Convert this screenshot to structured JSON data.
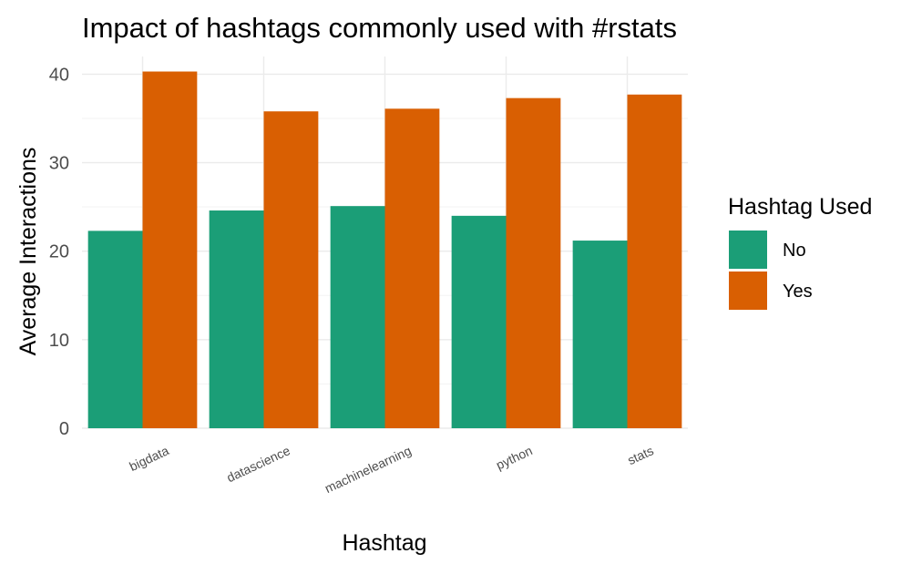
{
  "chart_data": {
    "type": "bar",
    "title": "Impact of hashtags commonly used with #rstats",
    "xlabel": "Hashtag",
    "ylabel": "Average Interactions",
    "categories": [
      "bigdata",
      "datascience",
      "machinelearning",
      "python",
      "stats"
    ],
    "series": [
      {
        "name": "No",
        "color": "#1b9e77",
        "values": [
          22.3,
          24.6,
          25.1,
          24.0,
          21.2
        ]
      },
      {
        "name": "Yes",
        "color": "#d95f02",
        "values": [
          40.3,
          35.8,
          36.1,
          37.3,
          37.7
        ]
      }
    ],
    "ylim": [
      0,
      42
    ],
    "yticks": [
      0,
      10,
      20,
      30,
      40
    ],
    "grid": true,
    "legend": {
      "title": "Hashtag Used",
      "position": "right"
    }
  }
}
